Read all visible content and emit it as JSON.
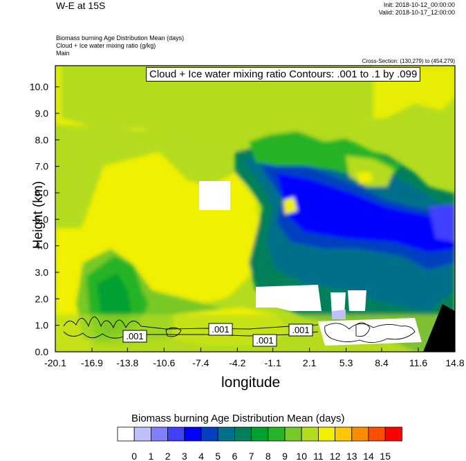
{
  "header": {
    "title": "W-E at 15S",
    "init": "Init: 2018-10-12_00:00:00",
    "valid": "Valid: 2018-10-17_12:00:00",
    "field1": "Biomass burning Age Distribution Mean   (days)",
    "field2": "Cloud + Ice water mixing ratio   (g/kg)",
    "field3": "Main",
    "cross_section": "Cross-Section: (130,279) to (454,279)"
  },
  "contour_note": "Cloud + Ice water mixing ratio Contours: .001 to .1 by .099",
  "contour_labels": [
    ".001",
    ".001",
    ".001",
    ".001"
  ],
  "label_bar": {
    "title": "Biomass burning Age Distribution Mean  (days)",
    "ticks": [
      "0",
      "1",
      "2",
      "3",
      "4",
      "5",
      "6",
      "7",
      "8",
      "9",
      "10",
      "11",
      "12",
      "13",
      "14",
      "15"
    ],
    "colors": [
      "#ffffff",
      "#c0c0ff",
      "#8080ff",
      "#4040ff",
      "#0000ff",
      "#0040c0",
      "#006f8a",
      "#00805a",
      "#00a030",
      "#28b428",
      "#78c828",
      "#b4dc1e",
      "#f0f000",
      "#ffc800",
      "#ff8c00",
      "#ff5000",
      "#ff0000"
    ]
  },
  "chart_data": {
    "type": "heatmap",
    "title": "W-E at 15S",
    "xlabel": "longitude",
    "ylabel": "Height (km)",
    "xlim": [
      -20.1,
      14.8
    ],
    "ylim": [
      0.0,
      10.8
    ],
    "x_ticks": [
      "-20.1",
      "-16.9",
      "-13.8",
      "-10.6",
      "-7.4",
      "-4.2",
      "-1.1",
      "2.1",
      "5.3",
      "8.4",
      "11.6",
      "14.8"
    ],
    "y_ticks": [
      "0.0",
      "1.0",
      "2.0",
      "3.0",
      "4.0",
      "5.0",
      "6.0",
      "7.0",
      "8.0",
      "9.0",
      "10.0"
    ],
    "x_tick_values": [
      -20.1,
      -16.9,
      -13.8,
      -10.6,
      -7.4,
      -4.2,
      -1.1,
      2.1,
      5.3,
      8.4,
      11.6,
      14.8
    ],
    "y_tick_values": [
      0,
      1,
      2,
      3,
      4,
      5,
      6,
      7,
      8,
      9,
      10
    ],
    "background_value_days": 11,
    "regions": [
      {
        "name": "upper-green",
        "x": [
          -6.8,
          9.6
        ],
        "y": [
          5.6,
          8.4
        ],
        "value": 7
      },
      {
        "name": "upper-light",
        "x": [
          -2.0,
          4.0
        ],
        "y": [
          6.6,
          7.6
        ],
        "value": 9
      },
      {
        "name": "mid-east-blue",
        "x": [
          -0.5,
          14.8
        ],
        "y": [
          3.2,
          6.8
        ],
        "value": 4
      },
      {
        "name": "east-core",
        "x": [
          11.0,
          14.8
        ],
        "y": [
          4.0,
          6.0
        ],
        "value": 4
      },
      {
        "name": "lower-east-green",
        "x": [
          0.0,
          14.8
        ],
        "y": [
          1.5,
          4.0
        ],
        "value": 6
      },
      {
        "name": "west-low-green",
        "x": [
          -16.5,
          -8.5
        ],
        "y": [
          0.3,
          3.2
        ],
        "value": 8
      },
      {
        "name": "yellow-low",
        "x": [
          -8.5,
          1.0
        ],
        "y": [
          0.2,
          3.5
        ],
        "value": 12
      },
      {
        "name": "white-mid",
        "x": [
          -8.0,
          -3.6
        ],
        "y": [
          5.4,
          6.4
        ],
        "value": 0
      },
      {
        "name": "white-low",
        "x": [
          -1.0,
          8.0
        ],
        "y": [
          1.6,
          2.6
        ],
        "value": 0
      },
      {
        "name": "white-surface",
        "x": [
          3.2,
          10.8
        ],
        "y": [
          0.4,
          1.2
        ],
        "value": 0
      }
    ]
  }
}
